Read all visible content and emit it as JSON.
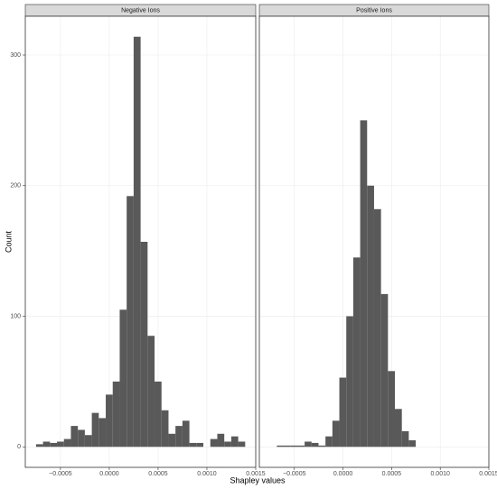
{
  "chart_data": [
    {
      "type": "histogram",
      "title": "Negative Ions",
      "ylabel": "Count",
      "xlabel": "Shapley values",
      "color": "#595959",
      "grid": true,
      "bins": [
        -0.00075,
        -0.0006786,
        -0.0006072,
        -0.0005358,
        -0.0004644,
        -0.000393,
        -0.0003216,
        -0.0002502,
        -0.0001788,
        -0.0001074,
        -3.6e-05,
        3.54e-05,
        0.0001068,
        0.0001782,
        0.0002496,
        0.000321,
        0.0003924,
        0.0004638,
        0.0005352,
        0.0006066,
        0.000678,
        0.0007494,
        0.0008208,
        0.0008922,
        0.0009636,
        0.001035,
        0.0011064,
        0.0011778,
        0.0012492,
        0.0013206,
        0.001392
      ],
      "values": [
        2,
        4,
        3,
        4,
        6,
        16,
        13,
        9,
        26,
        22,
        40,
        50,
        105,
        192,
        314,
        157,
        85,
        50,
        28,
        10,
        16,
        20,
        3,
        3,
        0,
        6,
        10,
        4,
        8,
        4
      ],
      "xlim": [
        -0.00086,
        0.0015
      ],
      "ylim": [
        -15.7,
        329.7
      ],
      "xticks": [
        {
          "value": -0.0005,
          "label": "−0.0005"
        },
        {
          "value": 0,
          "label": "0.0000"
        },
        0.0005,
        {
          "value": 0.001,
          "label": "0.0010"
        },
        {
          "value": 0.0015,
          "label": "0.0015"
        }
      ],
      "yticks": [
        0,
        100,
        200,
        300
      ]
    },
    {
      "type": "histogram",
      "title": "Positive Ions",
      "color": "#595959",
      "grid": true,
      "bins": [
        -0.00068,
        -0.0006086,
        -0.0005372,
        -0.0004658,
        -0.0003944,
        -0.000323,
        -0.0002516,
        -0.0001802,
        -0.0001088,
        -3.74e-05,
        3.4e-05,
        0.0001054,
        0.0001768,
        0.0002482,
        0.0003196,
        0.000391,
        0.0004624,
        0.0005338,
        0.0006052,
        0.0006766,
        0.000748
      ],
      "values": [
        1,
        1,
        1,
        1,
        4,
        3,
        1,
        8,
        20,
        53,
        100,
        145,
        250,
        200,
        182,
        117,
        58,
        29,
        12,
        5
      ],
      "xlim": [
        -0.00086,
        0.0015
      ],
      "ylim": [
        -15.7,
        329.7
      ],
      "xticks": [
        {
          "value": -0.0005,
          "label": "−0.0005"
        },
        {
          "value": 0,
          "label": "0.0000"
        },
        0.0005,
        {
          "value": 0.001,
          "label": "0.0010"
        },
        {
          "value": 0.0015,
          "label": "0.0015"
        }
      ]
    }
  ]
}
